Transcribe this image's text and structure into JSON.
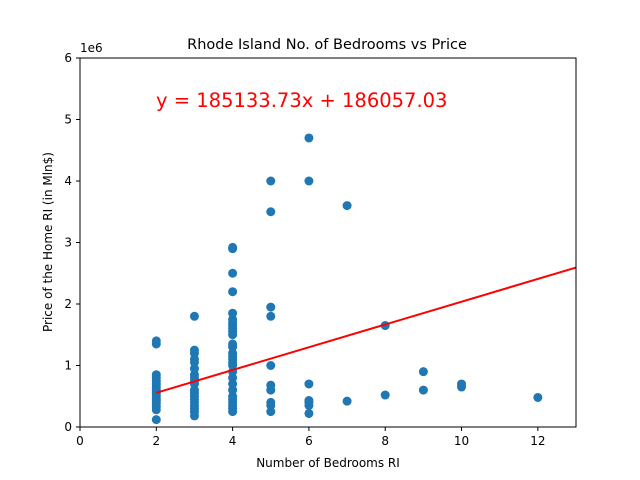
{
  "chart_data": {
    "type": "scatter",
    "title": "Rhode Island No. of Bedrooms vs Price",
    "xlabel": "Number of Bedrooms RI",
    "ylabel": "Price of the Home RI (in Mln$)",
    "y_scale_label": "1e6",
    "annotation": "y = 185133.73x + 186057.03",
    "xlim": [
      0,
      13
    ],
    "ylim": [
      0,
      6000000
    ],
    "x_ticks": [
      0,
      2,
      4,
      6,
      8,
      10,
      12
    ],
    "y_ticks": [
      0,
      1000000,
      2000000,
      3000000,
      4000000,
      5000000,
      6000000
    ],
    "y_tick_labels": [
      "0",
      "1",
      "2",
      "3",
      "4",
      "5",
      "6"
    ],
    "grid": false,
    "colors": {
      "points": "#1f77b4",
      "regression": "#ff0000",
      "annotation": "#ff0000"
    },
    "regression": {
      "slope": 185133.73,
      "intercept": 186057.03,
      "x_range": [
        2,
        13
      ]
    },
    "points": [
      [
        2,
        120000
      ],
      [
        2,
        280000
      ],
      [
        2,
        330000
      ],
      [
        2,
        380000
      ],
      [
        2,
        420000
      ],
      [
        2,
        450000
      ],
      [
        2,
        480000
      ],
      [
        2,
        520000
      ],
      [
        2,
        560000
      ],
      [
        2,
        600000
      ],
      [
        2,
        650000
      ],
      [
        2,
        700000
      ],
      [
        2,
        750000
      ],
      [
        2,
        800000
      ],
      [
        2,
        850000
      ],
      [
        2,
        1350000
      ],
      [
        2,
        1400000
      ],
      [
        3,
        180000
      ],
      [
        3,
        250000
      ],
      [
        3,
        300000
      ],
      [
        3,
        350000
      ],
      [
        3,
        400000
      ],
      [
        3,
        450000
      ],
      [
        3,
        500000
      ],
      [
        3,
        550000
      ],
      [
        3,
        600000
      ],
      [
        3,
        700000
      ],
      [
        3,
        750000
      ],
      [
        3,
        800000
      ],
      [
        3,
        850000
      ],
      [
        3,
        950000
      ],
      [
        3,
        1050000
      ],
      [
        3,
        1100000
      ],
      [
        3,
        1200000
      ],
      [
        3,
        1250000
      ],
      [
        3,
        1800000
      ],
      [
        4,
        250000
      ],
      [
        4,
        300000
      ],
      [
        4,
        350000
      ],
      [
        4,
        400000
      ],
      [
        4,
        450000
      ],
      [
        4,
        500000
      ],
      [
        4,
        600000
      ],
      [
        4,
        700000
      ],
      [
        4,
        800000
      ],
      [
        4,
        900000
      ],
      [
        4,
        1000000
      ],
      [
        4,
        1050000
      ],
      [
        4,
        1100000
      ],
      [
        4,
        1150000
      ],
      [
        4,
        1200000
      ],
      [
        4,
        1300000
      ],
      [
        4,
        1350000
      ],
      [
        4,
        1500000
      ],
      [
        4,
        1550000
      ],
      [
        4,
        1600000
      ],
      [
        4,
        1650000
      ],
      [
        4,
        1700000
      ],
      [
        4,
        1750000
      ],
      [
        4,
        1850000
      ],
      [
        4,
        2200000
      ],
      [
        4,
        2500000
      ],
      [
        4,
        2900000
      ],
      [
        4,
        2920000
      ],
      [
        5,
        250000
      ],
      [
        5,
        350000
      ],
      [
        5,
        400000
      ],
      [
        5,
        600000
      ],
      [
        5,
        680000
      ],
      [
        5,
        1000000
      ],
      [
        5,
        1800000
      ],
      [
        5,
        1950000
      ],
      [
        5,
        3500000
      ],
      [
        5,
        4000000
      ],
      [
        6,
        220000
      ],
      [
        6,
        350000
      ],
      [
        6,
        400000
      ],
      [
        6,
        430000
      ],
      [
        6,
        700000
      ],
      [
        6,
        4000000
      ],
      [
        6,
        4700000
      ],
      [
        7,
        420000
      ],
      [
        7,
        3600000
      ],
      [
        8,
        520000
      ],
      [
        8,
        1650000
      ],
      [
        9,
        600000
      ],
      [
        9,
        900000
      ],
      [
        10,
        650000
      ],
      [
        10,
        700000
      ],
      [
        12,
        480000
      ]
    ]
  }
}
